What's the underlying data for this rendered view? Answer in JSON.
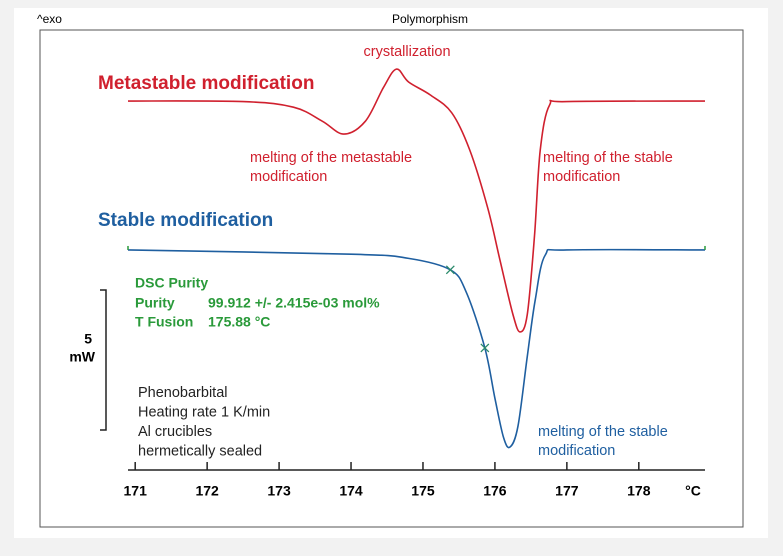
{
  "chart_data": {
    "type": "line",
    "title": "Polymorphism",
    "y_label": "^exo",
    "x_unit": "°C",
    "xlim": [
      170.9,
      178.92
    ],
    "ylim": [
      -7.86,
      7.5
    ],
    "xticks": [
      171,
      172,
      173,
      174,
      175,
      176,
      177,
      178
    ],
    "series": [
      {
        "name": "Metastable modification",
        "color": "#d0202e",
        "x": [
          170.9,
          172.5,
          173.2,
          173.6,
          173.9,
          174.2,
          174.45,
          174.63,
          174.8,
          175.1,
          175.4,
          175.65,
          175.9,
          176.07,
          176.25,
          176.35,
          176.45,
          176.55,
          176.63,
          176.76,
          177.0,
          178.92
        ],
        "values": [
          5.32,
          5.3,
          5.1,
          4.6,
          4.14,
          4.6,
          5.8,
          6.46,
          6.0,
          5.54,
          4.9,
          3.57,
          1.5,
          -0.36,
          -2.3,
          -2.93,
          -2.3,
          0.5,
          3.57,
          5.18,
          5.3,
          5.32
        ]
      },
      {
        "name": "Stable modification",
        "color": "#1f5fa0",
        "x": [
          170.9,
          174.0,
          174.8,
          175.38,
          175.6,
          175.86,
          176.0,
          176.12,
          176.21,
          176.32,
          176.45,
          176.56,
          176.7,
          177.0,
          178.92
        ],
        "values": [
          0,
          -0.15,
          -0.3,
          -0.71,
          -1.5,
          -3.5,
          -5.3,
          -6.7,
          -7.04,
          -6.3,
          -3.8,
          -1.79,
          -0.18,
          0,
          0
        ]
      }
    ],
    "annotations": [
      {
        "lines": [
          "crystallization"
        ],
        "color": "#d0202e"
      },
      {
        "lines": [
          "melting of the  metastable",
          "modification"
        ],
        "color": "#d0202e"
      },
      {
        "lines": [
          "melting of the stable",
          "modification"
        ],
        "color": "#d0202e"
      },
      {
        "lines": [
          "melting of the stable",
          "modification"
        ],
        "color": "#1f5fa0"
      }
    ],
    "purity": {
      "title": "DSC Purity",
      "color": "#2a9a3a",
      "rows": [
        [
          "Purity",
          "99.912 +/- 2.415e-03 mol%"
        ],
        [
          "T Fusion",
          "175.88 °C"
        ]
      ]
    },
    "scale_bar": {
      "value": 5,
      "unit": "mW"
    },
    "notes": [
      "Phenobarbital",
      "Heating rate 1 K/min",
      "Al crucibles",
      "hermetically sealed"
    ]
  }
}
